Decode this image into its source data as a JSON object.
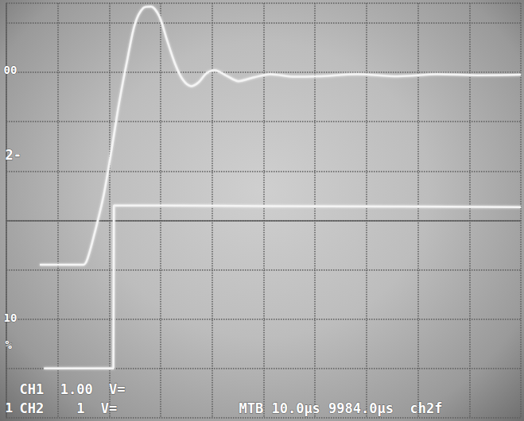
{
  "chart_data": {
    "type": "line",
    "xlim": [
      0,
      100
    ],
    "xticks": [
      0,
      10,
      20,
      30,
      40,
      50,
      60,
      70,
      80,
      90,
      100
    ],
    "ylim": [
      -4,
      4.4
    ],
    "yticks": [
      -4,
      -3,
      -2,
      -1,
      0,
      1,
      2,
      3,
      4
    ],
    "grid": true,
    "tick_labels": false,
    "series": [
      {
        "color": "#f4f4f4",
        "x": [
          6.5,
          15.0,
          15.8,
          17.3,
          18.9,
          20.4,
          21.9,
          23.5,
          25.0,
          26.6,
          28.1,
          29.7,
          31.2,
          32.8,
          34.3,
          35.9,
          37.4,
          38.9,
          40.5,
          42.8,
          45.1,
          48.2,
          51.3,
          56.0,
          60.6,
          68.3,
          76.0,
          83.8,
          91.5,
          100
        ],
        "values": [
          -0.9,
          -0.9,
          -0.77,
          -0.2,
          0.5,
          1.4,
          2.37,
          3.25,
          3.98,
          4.3,
          4.33,
          4.14,
          3.66,
          3.17,
          2.85,
          2.72,
          2.8,
          2.98,
          3.04,
          2.93,
          2.82,
          2.9,
          2.96,
          2.91,
          2.92,
          2.96,
          2.92,
          2.96,
          2.94,
          2.95
        ]
      },
      {
        "color": "#f4f4f4",
        "x": [
          7.3,
          20.8,
          20.9,
          30,
          50,
          75,
          100
        ],
        "values": [
          -3.0,
          -3.0,
          0.3,
          0.3,
          0.29,
          0.28,
          0.27
        ]
      }
    ],
    "channel_labels": [
      "CH1  1.00  V=",
      "CH2    1  V="
    ],
    "timebase_label": "MTB 10.0µs 9984.0µs  ch2f",
    "trace_markers": [
      "1",
      "2-"
    ],
    "graticule_labels": [
      "00",
      "10",
      "%"
    ]
  }
}
